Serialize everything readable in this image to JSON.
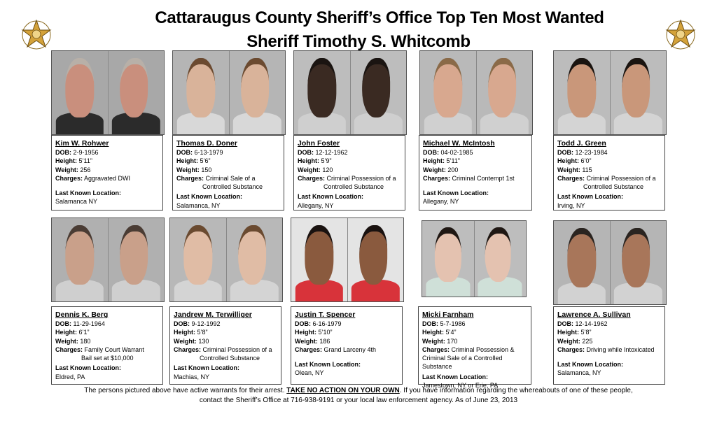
{
  "title_line1": "Cattaraugus County Sheriff’s Office Top Ten Most Wanted",
  "title_line2": "Sheriff Timothy S. Whitcomb",
  "labels": {
    "dob": "DOB:",
    "height": "Height:",
    "weight": "Weight:",
    "charges": "Charges:",
    "last_location": "Last Known Location:"
  },
  "footer": {
    "before": "The persons pictured above have active warrants for their arrest.",
    "emphasis": "TAKE NO ACTION ON YOUR OWN",
    "after": ". If you have information regarding the whereabouts of one of these people,",
    "line2": "contact the Sheriff’s Office at 716-938-9191 or your local law enforcement agency.  As of June 23, 2013"
  },
  "people": [
    {
      "name": "Kim W. Rohwer",
      "dob": "2-9-1956",
      "height": "5’11”",
      "weight": "256",
      "charges": [
        "Aggravated DWI"
      ],
      "location": "Salamanca NY",
      "skin": "#c98f7d",
      "hair": "#b8b0a8",
      "shirt": "#2b2b2b",
      "bg": "#a8a8a8"
    },
    {
      "name": "Thomas D. Doner",
      "dob": "6-13-1979",
      "height": "5’6”",
      "weight": "150",
      "charges": [
        "Criminal Sale of a",
        "Controlled Substance"
      ],
      "location": "Salamanca, NY",
      "skin": "#d9b39a",
      "hair": "#6b4a30",
      "shirt": "#d8d8d8",
      "bg": "#b5b5b5"
    },
    {
      "name": "John Foster",
      "dob": "12-12-1962",
      "height": "5’9”",
      "weight": "120",
      "charges": [
        "Criminal Possession of a",
        "Controlled Substance"
      ],
      "location": "Allegany, NY",
      "skin": "#3a2a22",
      "hair": "#1a1411",
      "shirt": "#cfcfcf",
      "bg": "#bdbdbd"
    },
    {
      "name": "Michael W. McIntosh",
      "dob": "04-02-1985",
      "height": "5’11”",
      "weight": "200",
      "charges": [
        "Criminal Contempt 1st"
      ],
      "location": "Allegany, NY",
      "skin": "#d8a88f",
      "hair": "#8a6a48",
      "shirt": "#d0d0d0",
      "bg": "#b9b9b9"
    },
    {
      "name": "Todd J. Green",
      "dob": "12-23-1984",
      "height": "6’0”",
      "weight": "115",
      "charges": [
        "Criminal Possession of a",
        "Controlled Substance"
      ],
      "location": "Irving, NY",
      "skin": "#c9977a",
      "hair": "#1a1410",
      "shirt": "#d4d4d4",
      "bg": "#bcbcbc"
    },
    {
      "name": "Dennis K. Berg",
      "dob": "11-29-1964",
      "height": "6’1”",
      "weight": "180",
      "charges": [
        "Family Court Warrant",
        "Bail set at $10,000"
      ],
      "location": "Eldred, PA",
      "skin": "#c9a08a",
      "hair": "#4a3c34",
      "shirt": "#cfcfcf",
      "bg": "#b0b0b0"
    },
    {
      "name": "Jandrew M. Terwilliger",
      "dob": "9-12-1992",
      "height": "5’8”",
      "weight": "130",
      "charges": [
        "Criminal Possession of a",
        "Controlled Substance"
      ],
      "location": "Machias, NY",
      "skin": "#e0bca5",
      "hair": "#6a4a30",
      "shirt": "#d4d4d4",
      "bg": "#b8b8b8"
    },
    {
      "name": "Justin T. Spencer",
      "dob": "6-16-1979",
      "height": "5’10”",
      "weight": "186",
      "charges": [
        "Grand Larceny 4th"
      ],
      "location": "Olean, NY",
      "skin": "#8a5a3e",
      "hair": "#1a1210",
      "shirt": "#d8333a",
      "bg": "#e4e4e4"
    },
    {
      "name": "Micki Farnham",
      "dob": "5-7-1986",
      "height": "5’4”",
      "weight": "170",
      "charges": [
        "Criminal Possession &",
        "Criminal Sale of  a Controlled",
        "Substance"
      ],
      "location": "Jamestown, NY or Erie, PA",
      "skin": "#e4c2b0",
      "hair": "#1f1713",
      "shirt": "#cfe0d8",
      "bg": "#bdbdbd"
    },
    {
      "name": "Lawrence A. Sullivan",
      "dob": "12-14-1962",
      "height": "5’8”",
      "weight": "225",
      "charges": [
        "Driving while Intoxicated"
      ],
      "location": "Salamanca, NY",
      "skin": "#a8765a",
      "hair": "#2a2420",
      "shirt": "#d2d2d2",
      "bg": "#b5b5b5"
    }
  ]
}
